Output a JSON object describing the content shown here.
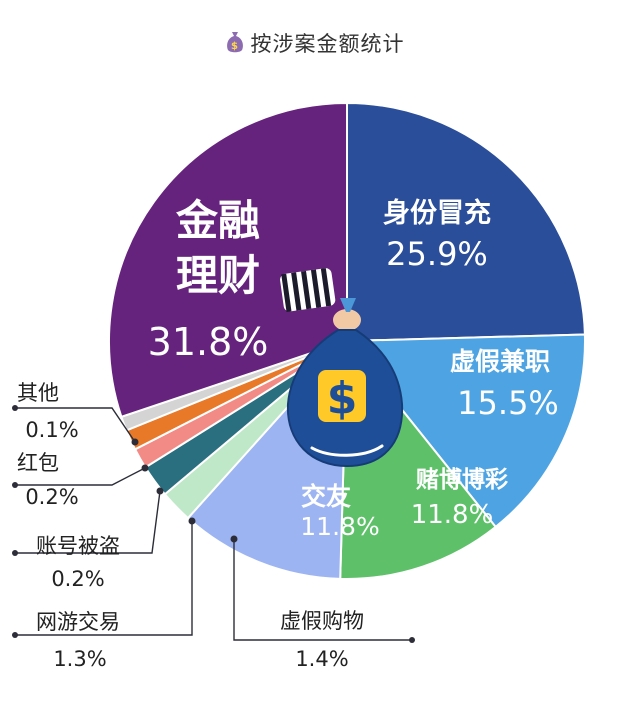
{
  "title": "按涉案金额统计",
  "chart_data": {
    "type": "pie",
    "title": "按涉案金额统计",
    "slices": [
      {
        "name": "身份冒充",
        "pct_label": "25.9%",
        "value": 25.9,
        "color": "#2b4e9a"
      },
      {
        "name": "虚假兼职",
        "pct_label": "15.5%",
        "value": 15.5,
        "color": "#4ea4e2"
      },
      {
        "name": "赌博博彩",
        "pct_label": "11.8%",
        "value": 11.8,
        "color": "#5ec16a"
      },
      {
        "name": "交友",
        "pct_label": "11.8%",
        "value": 11.8,
        "color": "#9db4f2"
      },
      {
        "name": "虚假购物",
        "pct_label": "1.4%",
        "value": 1.4,
        "color": "#bfe8c9"
      },
      {
        "name": "网游交易",
        "pct_label": "1.3%",
        "value": 1.3,
        "color": "#2a6f7f"
      },
      {
        "name": "账号被盗",
        "pct_label": "0.2%",
        "value": 0.2,
        "color": "#f28b86"
      },
      {
        "name": "红包",
        "pct_label": "0.2%",
        "value": 0.2,
        "color": "#e87928"
      },
      {
        "name": "其他",
        "pct_label": "0.1%",
        "value": 0.1,
        "color": "#d4d4d4"
      },
      {
        "name": "金融理财",
        "pct_label": "31.8%",
        "value": 31.8,
        "color": "#66237d"
      }
    ]
  }
}
